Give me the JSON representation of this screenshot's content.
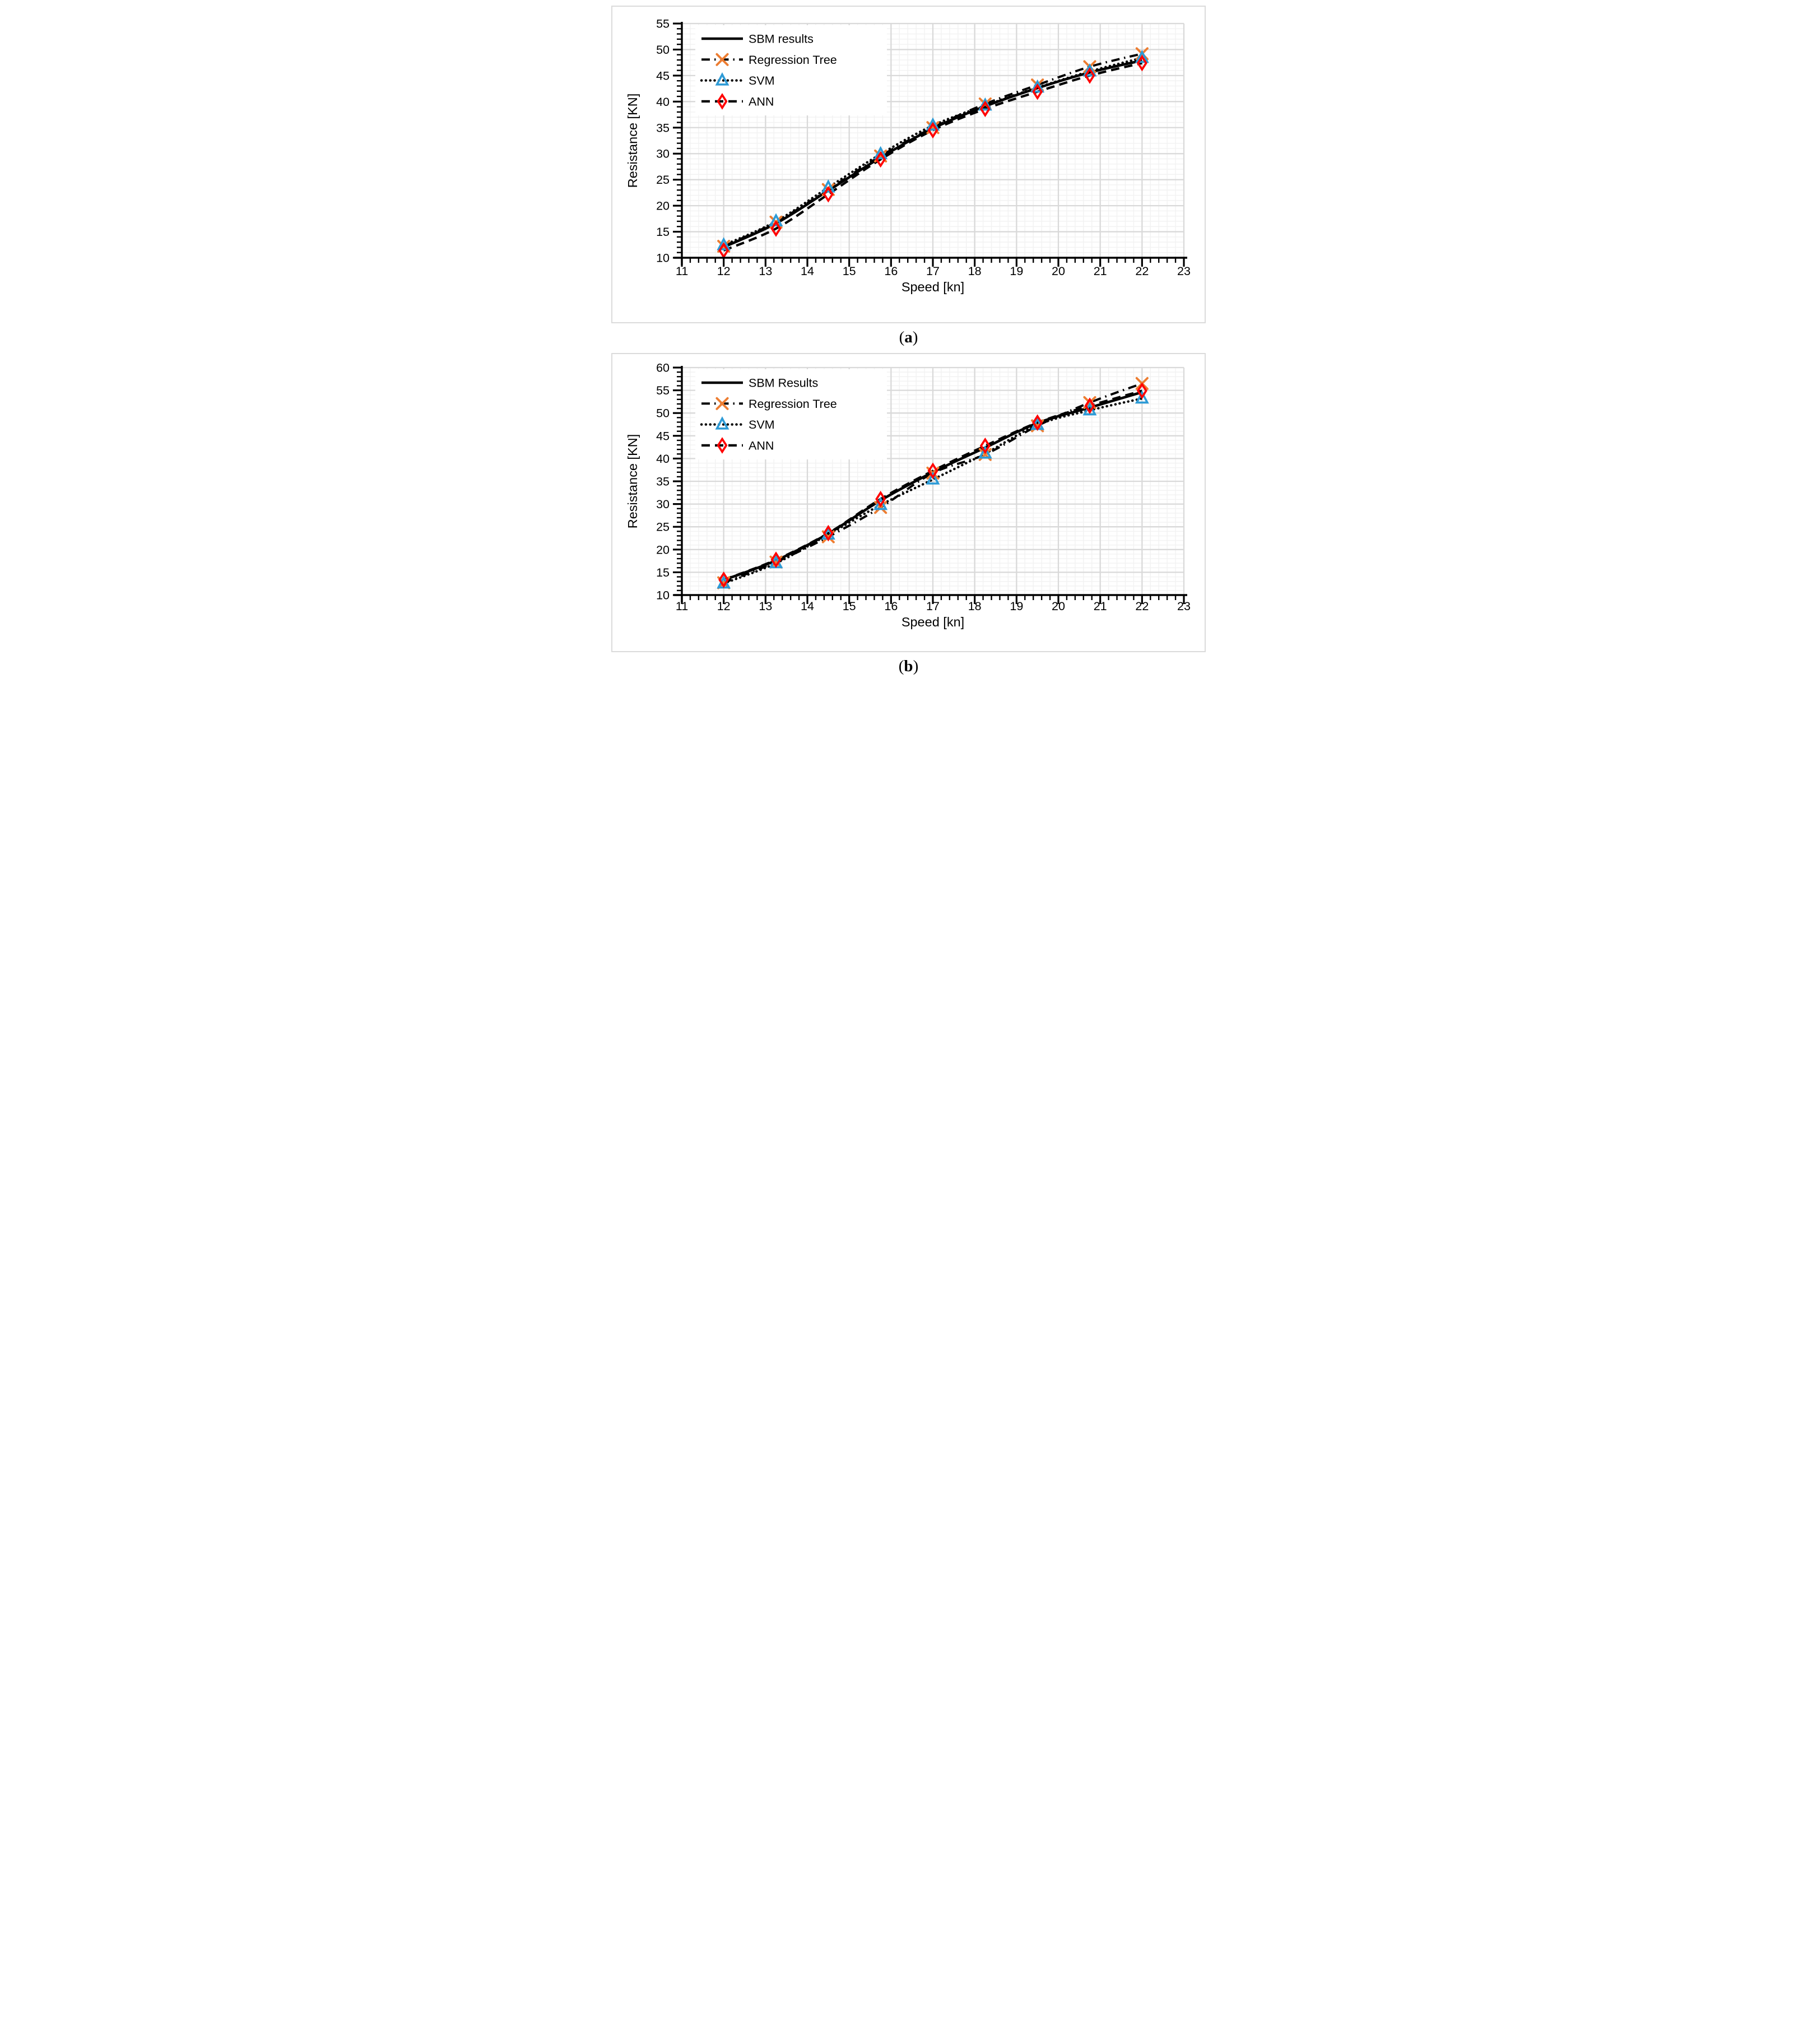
{
  "captions": {
    "a": {
      "open": "(",
      "letter": "a",
      "close": ")"
    },
    "b": {
      "open": "(",
      "letter": "b",
      "close": ")"
    }
  },
  "style": {
    "panel_border_color": "#dbdbdb",
    "grid_major_color": "#d9d9d9",
    "grid_minor_color": "#f2f2f2",
    "axis_color": "#000000",
    "background": "#ffffff"
  },
  "chart_data": [
    {
      "type": "line",
      "panel": "a",
      "xlabel": "Speed [kn]",
      "ylabel": "Resistance [KN]",
      "xlim": [
        11,
        23
      ],
      "ylim": [
        10,
        55
      ],
      "xtick_labels": [
        "11",
        "12",
        "13",
        "14",
        "15",
        "16",
        "17",
        "18",
        "19",
        "20",
        "21",
        "22",
        "23"
      ],
      "ytick_labels": [
        "10",
        "15",
        "20",
        "25",
        "30",
        "35",
        "40",
        "45",
        "50",
        "55"
      ],
      "xtick_step": 1,
      "ytick_step": 5,
      "x_minor_step": 0.2,
      "y_minor_step": 1,
      "grid": true,
      "legend_position": "top-left",
      "x": [
        12,
        13.25,
        14.5,
        15.75,
        17,
        18.25,
        19.5,
        20.75,
        22
      ],
      "series": [
        {
          "name": "SBM results",
          "line": "solid",
          "marker": "none",
          "line_color": "#000000",
          "marker_color": null,
          "values": [
            12.05,
            16.6,
            22.9,
            29.25,
            34.85,
            39.1,
            42.6,
            45.6,
            47.9
          ]
        },
        {
          "name": "Regression Tree",
          "line": "dashdot",
          "marker": "x",
          "line_color": "#000000",
          "marker_color": "#ED7D31",
          "values": [
            12.2,
            16.85,
            23.1,
            29.55,
            35.0,
            39.55,
            43.2,
            46.7,
            49.2
          ]
        },
        {
          "name": "SVM",
          "line": "dotted",
          "marker": "triangle",
          "line_color": "#000000",
          "marker_color": "#2E9BD6",
          "values": [
            12.4,
            17.0,
            23.5,
            29.9,
            35.4,
            39.25,
            42.7,
            45.8,
            48.4
          ]
        },
        {
          "name": "ANN",
          "line": "dashed",
          "marker": "diamond",
          "line_color": "#000000",
          "marker_color": "#FF0000",
          "values": [
            11.4,
            15.6,
            22.2,
            28.9,
            34.5,
            38.6,
            41.9,
            45.0,
            47.4
          ]
        }
      ]
    },
    {
      "type": "line",
      "panel": "b",
      "xlabel": "Speed [kn]",
      "ylabel": "Resistance [KN]",
      "xlim": [
        11,
        23
      ],
      "ylim": [
        10,
        60
      ],
      "xtick_labels": [
        "11",
        "12",
        "13",
        "14",
        "15",
        "16",
        "17",
        "18",
        "19",
        "20",
        "21",
        "22",
        "23"
      ],
      "ytick_labels": [
        "10",
        "15",
        "20",
        "25",
        "30",
        "35",
        "40",
        "45",
        "50",
        "55",
        "60"
      ],
      "xtick_step": 1,
      "ytick_step": 5,
      "x_minor_step": 0.2,
      "y_minor_step": 1,
      "grid": true,
      "legend_position": "top-left",
      "x": [
        12,
        13.25,
        14.5,
        15.75,
        17,
        18.25,
        19.5,
        20.75,
        22
      ],
      "series": [
        {
          "name": "SBM Results",
          "line": "solid",
          "marker": "none",
          "line_color": "#000000",
          "marker_color": null,
          "values": [
            13.3,
            17.6,
            23.5,
            30.8,
            37.0,
            42.4,
            47.8,
            51.2,
            54.6
          ]
        },
        {
          "name": "Regression Tree",
          "line": "dashdot",
          "marker": "x",
          "line_color": "#000000",
          "marker_color": "#ED7D31",
          "values": [
            12.7,
            17.25,
            22.8,
            29.25,
            36.8,
            40.9,
            47.2,
            52.3,
            56.5
          ]
        },
        {
          "name": "SVM",
          "line": "dotted",
          "marker": "triangle",
          "line_color": "#000000",
          "marker_color": "#2E9BD6",
          "values": [
            12.55,
            17.0,
            23.3,
            29.8,
            35.4,
            41.1,
            47.4,
            50.6,
            53.2
          ]
        },
        {
          "name": "ANN",
          "line": "dashed",
          "marker": "diamond",
          "line_color": "#000000",
          "marker_color": "#FF0000",
          "values": [
            13.35,
            17.75,
            23.6,
            31.1,
            37.3,
            42.8,
            47.9,
            51.6,
            54.9
          ]
        }
      ]
    }
  ]
}
